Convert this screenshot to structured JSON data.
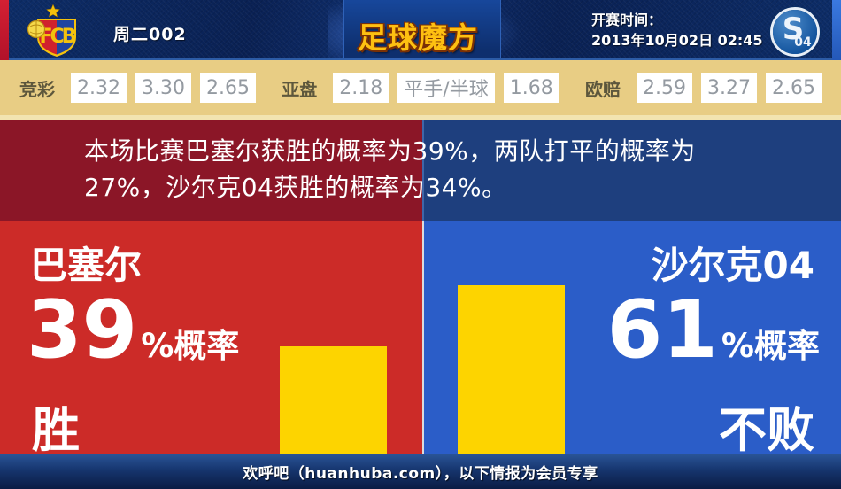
{
  "header": {
    "match_code": "周二002",
    "site_logo": "足球魔方",
    "kickoff_label": "开赛时间：",
    "kickoff_datetime": "2013年10月02日 02:45",
    "home_badge": {
      "team": "巴塞尔",
      "monogram": "FCB"
    },
    "away_badge": {
      "team": "沙尔克04",
      "s_mark": "S",
      "numeral": "04"
    }
  },
  "odds": {
    "jingcai": {
      "label": "竞彩",
      "values": [
        "2.32",
        "3.30",
        "2.65"
      ]
    },
    "yapan": {
      "label": "亚盘",
      "values": [
        "2.18",
        "平手/半球",
        "1.68"
      ]
    },
    "oupei": {
      "label": "欧赔",
      "values": [
        "2.59",
        "3.27",
        "2.65"
      ]
    }
  },
  "summary": {
    "line1": "本场比赛巴塞尔获胜的概率为39%，两队打平的概率为",
    "line2": "27%，沙尔克04获胜的概率为34%。"
  },
  "probabilities": {
    "home_win_pct": 39,
    "draw_pct": 27,
    "away_win_pct": 34,
    "away_unbeaten_pct": 61
  },
  "home_panel": {
    "team": "巴塞尔",
    "big_value": "39",
    "value_suffix": "%概率",
    "outcome": "胜",
    "bar_pct": 39
  },
  "away_panel": {
    "team": "沙尔克04",
    "big_value": "61",
    "value_suffix": "%概率",
    "outcome": "不败",
    "bar_pct": 61
  },
  "footer": {
    "text": "欢呼吧（huanhuba.com），以下情报为会员专享"
  },
  "colors": {
    "header_navy": "#0c2a63",
    "accent_red_strip": "#cf1b2b",
    "accent_blue_strip": "#2d6bd6",
    "logo_gold": "#fec011",
    "odds_bg_tan": "#e8cd84",
    "odds_value_gray": "#949aa1",
    "banner_maroon": "#8b1627",
    "banner_navy": "#1e3f7e",
    "panel_red": "#cc2b28",
    "panel_blue": "#2b5dc8",
    "bar_yellow": "#fdd400",
    "footer_navy": "#13306a"
  }
}
